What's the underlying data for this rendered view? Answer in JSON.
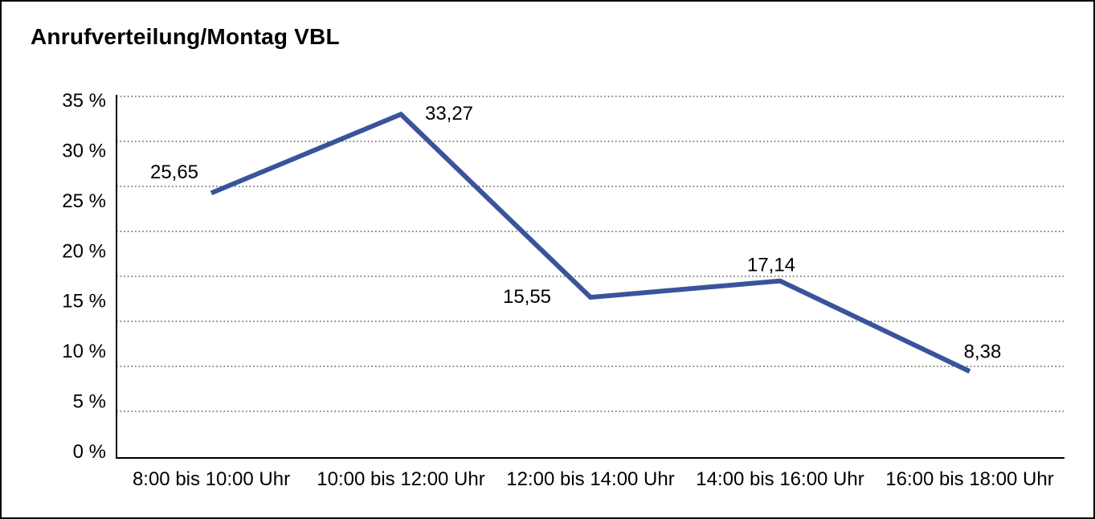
{
  "title": "Anrufverteilung/Montag VBL",
  "chart_data": {
    "type": "line",
    "title": "Anrufverteilung/Montag VBL",
    "categories": [
      "8:00 bis 10:00 Uhr",
      "10:00 bis 12:00 Uhr",
      "12:00 bis 14:00 Uhr",
      "14:00 bis 16:00 Uhr",
      "16:00 bis 18:00 Uhr"
    ],
    "values": [
      25.65,
      33.27,
      15.55,
      17.14,
      8.38
    ],
    "value_labels": [
      "25,65",
      "33,27",
      "15,55",
      "17,14",
      "8,38"
    ],
    "xlabel": "",
    "ylabel": "",
    "ylim": [
      0,
      35
    ],
    "ytick_step": 5,
    "ytick_labels": [
      "35 %",
      "30 %",
      "25 %",
      "20 %",
      "15 %",
      "10 %",
      "5 %",
      "0 %"
    ],
    "grid": "horizontal-dotted",
    "legend": "none",
    "colors": {
      "line": "#3A549B",
      "grid": "#3C3C3C",
      "axis": "#000000",
      "text": "#000000",
      "background": "#FFFFFF",
      "border": "#000000"
    }
  }
}
